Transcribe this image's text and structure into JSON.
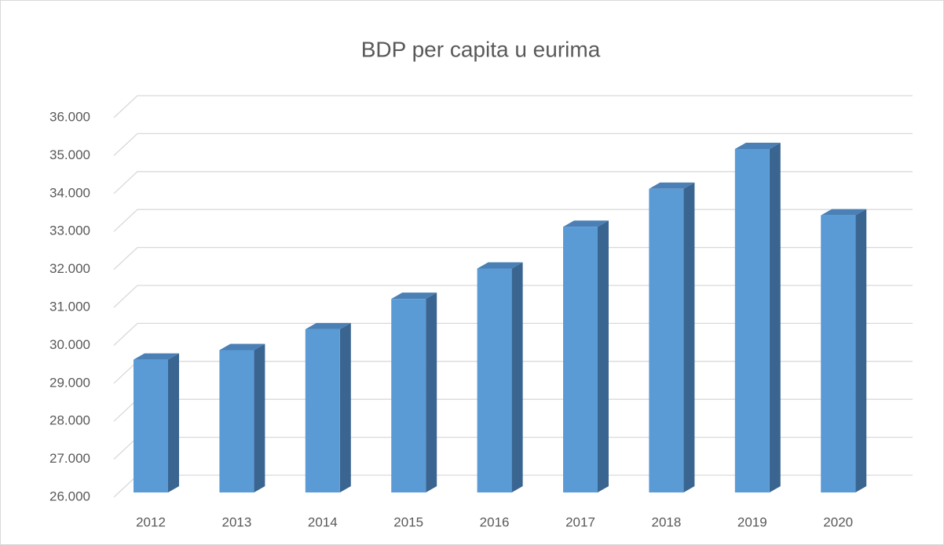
{
  "chart_data": {
    "type": "bar3d",
    "title": "BDP per capita u eurima",
    "categories": [
      "2012",
      "2013",
      "2014",
      "2015",
      "2016",
      "2017",
      "2018",
      "2019",
      "2020"
    ],
    "values": [
      29500,
      29750,
      30300,
      31100,
      31900,
      33000,
      34000,
      35050,
      33300
    ],
    "color": "#5b9bd5",
    "ylim": [
      26000,
      36000
    ],
    "yticks": [
      {
        "value": 26000,
        "label": "26.000"
      },
      {
        "value": 27000,
        "label": "27.000"
      },
      {
        "value": 28000,
        "label": "28.000"
      },
      {
        "value": 29000,
        "label": "29.000"
      },
      {
        "value": 30000,
        "label": "30.000"
      },
      {
        "value": 31000,
        "label": "31.000"
      },
      {
        "value": 32000,
        "label": "32.000"
      },
      {
        "value": 33000,
        "label": "33.000"
      },
      {
        "value": 34000,
        "label": "34.000"
      },
      {
        "value": 35000,
        "label": "35.000"
      },
      {
        "value": 36000,
        "label": "36.000"
      }
    ],
    "grid": true
  }
}
